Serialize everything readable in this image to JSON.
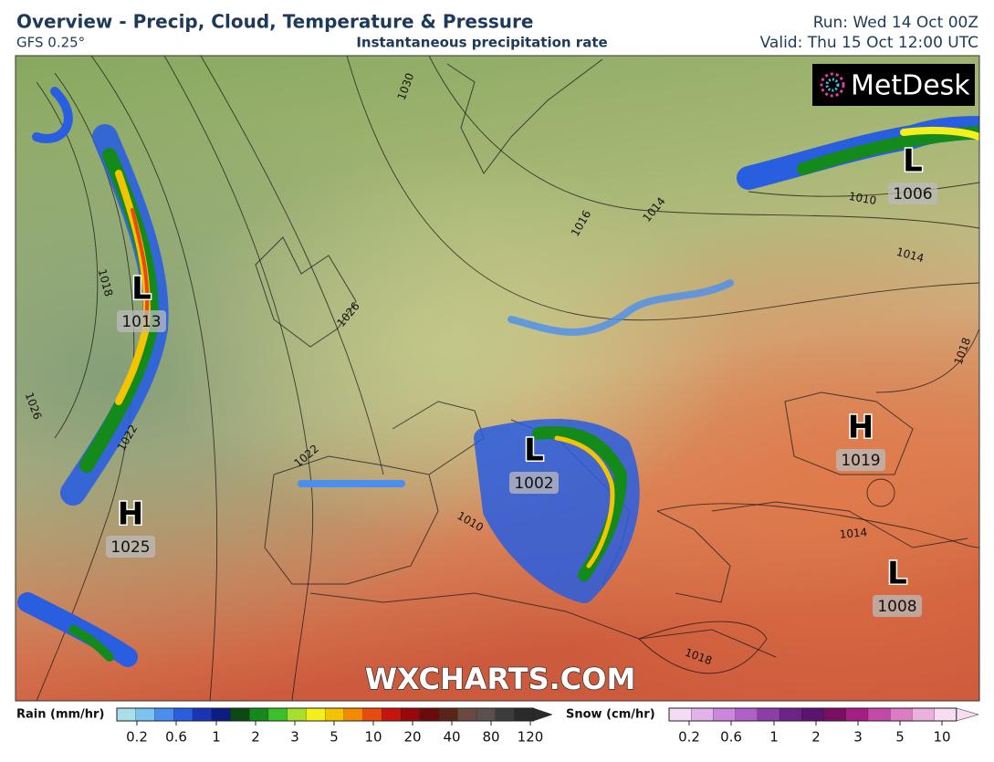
{
  "header": {
    "title": "Overview - Precip, Cloud, Temperature & Pressure",
    "model": "GFS 0.25°",
    "subtitle": "Instantaneous precipitation rate",
    "run": "Run: Wed 14 Oct 00Z",
    "valid": "Valid: Thu 15 Oct 12:00 UTC"
  },
  "map": {
    "logo": "MetDesk",
    "watermark": "WXCHARTS.COM",
    "pressure_centers": [
      {
        "type": "L",
        "value": 1013
      },
      {
        "type": "L",
        "value": 1006
      },
      {
        "type": "L",
        "value": 1002
      },
      {
        "type": "H",
        "value": 1019
      },
      {
        "type": "H",
        "value": 1025
      },
      {
        "type": "L",
        "value": 1008
      }
    ],
    "isobar_labels": [
      1030,
      1026,
      1026,
      1022,
      1022,
      1018,
      1016,
      1014,
      1014,
      1010,
      1018,
      1018,
      1014,
      1010
    ]
  },
  "legend": {
    "rain": {
      "title": "Rain (mm/hr)",
      "ticks": [
        0.2,
        0.6,
        1,
        2,
        3,
        5,
        10,
        20,
        40,
        80,
        120
      ],
      "colors": [
        "#a8dfe9",
        "#7cc2f2",
        "#4a8ef0",
        "#2a5ee0",
        "#1a34b8",
        "#0c1c80",
        "#0a4a12",
        "#138a1a",
        "#3cc02a",
        "#a6e02a",
        "#f5f01a",
        "#f5c400",
        "#f58a00",
        "#e84a10",
        "#c8140c",
        "#98080a",
        "#6a0a0a",
        "#5a2418",
        "#6a4a40",
        "#5a5050",
        "#3c3c3c",
        "#2a2a2a"
      ]
    },
    "snow": {
      "title": "Snow (cm/hr)",
      "ticks": [
        0.2,
        0.6,
        1,
        2,
        3,
        5,
        10
      ],
      "colors": [
        "#f4dcf4",
        "#e2b2ea",
        "#cc86dc",
        "#b060c8",
        "#8e3ca8",
        "#6c2286",
        "#5a1470",
        "#7a0e62",
        "#a41e86",
        "#c448a6",
        "#dc7cc4",
        "#ecb0dc",
        "#f8dcf0"
      ]
    }
  }
}
